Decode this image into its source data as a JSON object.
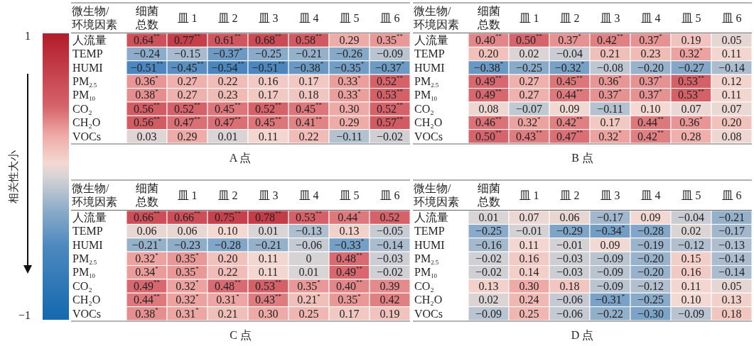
{
  "chart_data": [
    {
      "type": "heatmap",
      "title": "A 点",
      "ylabel": "微生物/环境因素",
      "clabel": "相关性大小",
      "clim": [
        -1,
        1
      ],
      "cticks": [
        1,
        {
          "value": -1,
          "label": "−1"
        }
      ],
      "categories": [
        "细菌总数",
        "皿 1",
        "皿 2",
        "皿 3",
        "皿 4",
        "皿 5",
        "皿 6"
      ],
      "y_categories": [
        "人流量",
        "TEMP",
        "HUMI",
        "PM$_{2.5}$",
        "PM$_{10}$",
        "CO₂",
        "CH₂O",
        "VOCs"
      ],
      "cells": [
        [
          0.64,
          0.77,
          0.61,
          0.68,
          0.58,
          0.29,
          0.35
        ],
        [
          -0.24,
          -0.15,
          -0.37,
          -0.25,
          -0.21,
          -0.26,
          -0.09
        ],
        [
          -0.51,
          -0.45,
          -0.54,
          -0.51,
          -0.38,
          -0.35,
          -0.37
        ],
        [
          0.36,
          0.27,
          0.22,
          0.16,
          0.17,
          0.33,
          0.52
        ],
        [
          0.38,
          0.27,
          0.23,
          0.17,
          0.18,
          0.33,
          0.53
        ],
        [
          0.56,
          0.52,
          0.45,
          0.52,
          0.45,
          0.3,
          0.52
        ],
        [
          0.56,
          0.47,
          0.47,
          0.45,
          0.41,
          0.29,
          0.57
        ],
        [
          0.03,
          0.29,
          0.01,
          0.11,
          0.22,
          -0.11,
          -0.02
        ]
      ],
      "cell_labels": [
        [
          "0.64$^{**}$",
          "0.77$^{**}$",
          "0.61$^{**}$",
          "0.68$^{**}$",
          "0.58$^{**}$",
          "0.29",
          "0.35$^{**}$"
        ],
        [
          "−0.24",
          "−0.15",
          "−0.37$^{*}$",
          "−0.25",
          "−0.21",
          "−0.26",
          "−0.09"
        ],
        [
          "−0.51$^{**}$",
          "−0.45$^{**}$",
          "−0.54$^{**}$",
          "−0.51$^{**}$",
          "−0.38$^{*}$",
          "−0.35$^{*}$",
          "−0.37$^{*}$"
        ],
        [
          "0.36$^{*}$",
          "0.27",
          "0.22",
          "0.16",
          "0.17",
          "0.33$^{*}$",
          "0.52$^{**}$"
        ],
        [
          "0.38$^{*}$",
          "0.27",
          "0.23",
          "0.17",
          "0.18",
          "0.33$^{*}$",
          "0.53$^{**}$"
        ],
        [
          "0.56$^{**}$",
          "0.52$^{**}$",
          "0.45$^{**}$",
          "0.52$^{**}$",
          "0.45$^{**}$",
          "0.30",
          "0.52$^{**}$"
        ],
        [
          "0.56$^{**}$",
          "0.47$^{**}$",
          "0.47$^{**}$",
          "0.45$^{**}$",
          "0.41$^{**}$",
          "0.29",
          "0.57$^{**}$"
        ],
        [
          "0.03",
          "0.29",
          "0.01",
          "0.11",
          "0.22",
          "−0.11",
          "−0.02"
        ]
      ]
    },
    {
      "type": "heatmap",
      "title": "B 点",
      "ylabel": "微生物/环境因素",
      "categories": [
        "细菌总数",
        "皿 1",
        "皿 2",
        "皿 3",
        "皿 4",
        "皿 5",
        "皿 6"
      ],
      "y_categories": [
        "人流量",
        "TEMP",
        "HUMI",
        "PM$_{2.5}$",
        "PM$_{10}$",
        "CO₂",
        "CH₂O",
        "VOCs"
      ],
      "cells": [
        [
          0.4,
          0.5,
          0.37,
          0.42,
          0.37,
          0.19,
          0.05
        ],
        [
          0.2,
          0.02,
          -0.04,
          0.21,
          0.23,
          0.32,
          0.11
        ],
        [
          -0.38,
          -0.25,
          -0.32,
          -0.08,
          -0.2,
          -0.27,
          -0.14
        ],
        [
          0.49,
          0.27,
          0.45,
          0.36,
          0.37,
          0.53,
          0.12
        ],
        [
          0.49,
          0.27,
          0.44,
          0.37,
          0.37,
          0.53,
          0.11
        ],
        [
          0.08,
          -0.07,
          0.09,
          -0.11,
          0.1,
          0.07,
          0.07
        ],
        [
          0.46,
          0.32,
          0.42,
          0.17,
          0.44,
          0.36,
          0.2
        ],
        [
          0.5,
          0.43,
          0.47,
          0.32,
          0.42,
          0.28,
          0.08
        ]
      ],
      "cell_labels": [
        [
          "0.40$^{**}$",
          "0.50$^{**}$",
          "0.37$^{*}$",
          "0.42$^{**}$",
          "0.37$^{*}$",
          "0.19",
          "0.05"
        ],
        [
          "0.20",
          "0.02",
          "−0.04",
          "0.21",
          "0.23",
          "0.32$^{*}$",
          "0.11"
        ],
        [
          "−0.38$^{*}$",
          "−0.25",
          "−0.32$^{*}$",
          "−0.08",
          "−0.20",
          "−0.27",
          "−0.14"
        ],
        [
          "0.49$^{**}$",
          "0.27",
          "0.45$^{**}$",
          "0.36$^{*}$",
          "0.37$^{*}$",
          "0.53$^{**}$",
          "0.12"
        ],
        [
          "0.49$^{**}$",
          "0.27",
          "0.44$^{**}$",
          "0.37$^{*}$",
          "0.37$^{*}$",
          "0.53$^{**}$",
          "0.11"
        ],
        [
          "0.08",
          "−0.07",
          "0.09",
          "−0.11",
          "0.10",
          "0.07",
          "0.07"
        ],
        [
          "0.46$^{**}$",
          "0.32$^{*}$",
          "0.42$^{**}$",
          "0.17",
          "0.44$^{**}$",
          "0.36$^{*}$",
          "0.20"
        ],
        [
          "0.50$^{**}$",
          "0.43$^{**}$",
          "0.47$^{**}$",
          "0.32$^{*}$",
          "0.42$^{**}$",
          "0.28",
          "0.08"
        ]
      ]
    },
    {
      "type": "heatmap",
      "title": "C 点",
      "ylabel": "微生物/环境因素",
      "categories": [
        "细菌总数",
        "皿 1",
        "皿 2",
        "皿 3",
        "皿 4",
        "皿 5",
        "皿 6"
      ],
      "y_categories": [
        "人流量",
        "TEMP",
        "HUMI",
        "PM$_{2.5}$",
        "PM$_{10}$",
        "CO₂",
        "CH₂O",
        "VOCs"
      ],
      "cells": [
        [
          0.66,
          0.66,
          0.75,
          0.78,
          0.53,
          0.44,
          0.52
        ],
        [
          0.06,
          0.06,
          0.1,
          0.01,
          -0.13,
          0.13,
          -0.05
        ],
        [
          -0.21,
          -0.23,
          -0.28,
          -0.21,
          -0.06,
          -0.33,
          -0.14
        ],
        [
          0.32,
          0.35,
          0.2,
          0.11,
          0,
          0.48,
          -0.03
        ],
        [
          0.34,
          0.35,
          0.22,
          0.11,
          0.01,
          0.49,
          -0.02
        ],
        [
          0.49,
          0.32,
          0.48,
          0.53,
          0.35,
          0.4,
          0.39
        ],
        [
          0.44,
          0.32,
          0.31,
          0.43,
          0.21,
          0.35,
          0.42
        ],
        [
          0.38,
          0.31,
          0.21,
          0.3,
          0.25,
          0.17,
          0.19
        ]
      ],
      "cell_labels": [
        [
          "0.66$^{**}$",
          "0.66$^{**}$",
          "0.75$^{**}$",
          "0.78$^{**}$",
          "0.53$^{**}$",
          "0.44$^{*}$",
          "0.52"
        ],
        [
          "0.06",
          "0.06",
          "0.10",
          "0.01",
          "−0.13",
          "0.13",
          "−0.05"
        ],
        [
          "−0.21$^{*}$",
          "−0.23",
          "−0.28",
          "−0.21",
          "−0.06",
          "−0.33$^{*}$",
          "−0.14"
        ],
        [
          "0.32$^{*}$",
          "0.35$^{*}$",
          "0.20",
          "0.11",
          "0",
          "0.48$^{**}$",
          "−0.03"
        ],
        [
          "0.34$^{*}$",
          "0.35$^{*}$",
          "0.22",
          "0.11",
          "0.01",
          "0.49$^{**}$",
          "−0.02"
        ],
        [
          "0.49$^{**}$",
          "0.32$^{*}$",
          "0.48$^{**}$",
          "0.53$^{**}$",
          "0.35$^{*}$",
          "0.40$^{**}$",
          "0.39"
        ],
        [
          "0.44$^{**}$",
          "0.32$^{*}$",
          "0.31$^{*}$",
          "0.43$^{**}$",
          "0.21$^{*}$",
          "0.35$^{*}$",
          "0.42"
        ],
        [
          "0.38$^{*}$",
          "0.31$^{*}$",
          "0.21",
          "0.30",
          "0.25",
          "0.17",
          "0.19"
        ]
      ]
    },
    {
      "type": "heatmap",
      "title": "D 点",
      "ylabel": "微生物/环境因素",
      "categories": [
        "细菌总数",
        "皿 1",
        "皿 2",
        "皿 3",
        "皿 4",
        "皿 5",
        "皿 6"
      ],
      "y_categories": [
        "人流量",
        "TEMP",
        "HUMI",
        "PM$_{2.5}$",
        "PM$_{10}$",
        "CO₂",
        "CH₂O",
        "VOCs"
      ],
      "cells": [
        [
          0.01,
          0.07,
          0.06,
          -0.17,
          0.09,
          -0.04,
          -0.21
        ],
        [
          -0.25,
          -0.01,
          -0.29,
          -0.34,
          -0.28,
          0.02,
          -0.17
        ],
        [
          -0.16,
          0.11,
          -0.01,
          0.09,
          -0.19,
          -0.12,
          -0.13
        ],
        [
          -0.02,
          0.16,
          -0.03,
          -0.09,
          -0.2,
          0.15,
          -0.14
        ],
        [
          -0.02,
          0.14,
          -0.03,
          -0.09,
          -0.2,
          0.16,
          -0.14
        ],
        [
          0.13,
          0.3,
          0.18,
          -0.09,
          -0.12,
          0.11,
          0.05
        ],
        [
          0.02,
          0.24,
          -0.06,
          -0.31,
          -0.25,
          0.1,
          0.13
        ],
        [
          -0.09,
          0.25,
          -0.06,
          -0.22,
          -0.3,
          -0.09,
          0.18
        ]
      ],
      "cell_labels": [
        [
          "0.01",
          "0.07",
          "0.06",
          "−0.17",
          "0.09",
          "−0.04",
          "−0.21"
        ],
        [
          "−0.25",
          "−0.01",
          "−0.29",
          "−0.34$^{*}$",
          "−0.28",
          "0.02",
          "−0.17"
        ],
        [
          "−0.16",
          "0.11",
          "−0.01",
          "0.09",
          "−0.19",
          "−0.12",
          "−0.13"
        ],
        [
          "−0.02",
          "0.16",
          "−0.03",
          "−0.09",
          "−0.20",
          "0.15",
          "−0.14"
        ],
        [
          "−0.02",
          "0.14",
          "−0.03",
          "−0.09",
          "−0.20",
          "0.16",
          "−0.14"
        ],
        [
          "0.13",
          "0.30",
          "0.18",
          "−0.09",
          "−0.12",
          "0.11",
          "0.05"
        ],
        [
          "0.02",
          "0.24",
          "−0.06",
          "−0.31$^{*}$",
          "−0.25",
          "0.10",
          "0.13"
        ],
        [
          "−0.09",
          "0.25",
          "−0.06",
          "−0.22",
          "−0.30",
          "−0.09",
          "0.18"
        ]
      ]
    }
  ]
}
